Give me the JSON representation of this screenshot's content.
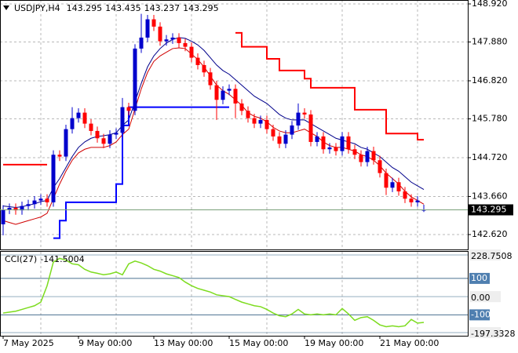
{
  "chart_data": {
    "type": "candlestick",
    "title": "USDJPY,H4",
    "categories": [
      "7 May 2025",
      null,
      null,
      null,
      null,
      null,
      null,
      null,
      null,
      null,
      null,
      null,
      "9 May 00:00",
      null,
      null,
      null,
      null,
      null,
      null,
      null,
      null,
      null,
      null,
      null,
      "13 May 00:00",
      null,
      null,
      null,
      null,
      null,
      null,
      null,
      null,
      null,
      null,
      null,
      "15 May 00:00",
      null,
      null,
      null,
      null,
      null,
      null,
      null,
      null,
      null,
      null,
      null,
      "19 May 00:00",
      null,
      null,
      null,
      null,
      null,
      null,
      null,
      null,
      null,
      null,
      null,
      "21 May 00:00",
      null,
      null,
      null,
      null,
      null,
      null,
      null
    ],
    "open": [
      142.9,
      143.3,
      143.35,
      143.28,
      143.4,
      143.45,
      143.55,
      143.6,
      143.5,
      144.8,
      144.75,
      145.5,
      145.8,
      145.95,
      145.65,
      145.45,
      145.25,
      145.1,
      145.35,
      145.4,
      146.1,
      146.0,
      147.7,
      148.0,
      148.5,
      148.3,
      147.9,
      147.95,
      148.0,
      147.85,
      147.75,
      147.45,
      147.25,
      147.05,
      146.7,
      146.3,
      146.55,
      146.6,
      146.2,
      146.0,
      145.8,
      145.65,
      145.75,
      145.5,
      145.3,
      145.1,
      145.35,
      145.6,
      145.95,
      145.9,
      145.15,
      145.3,
      144.95,
      145.0,
      144.9,
      145.3,
      144.95,
      144.8,
      144.6,
      144.9,
      144.65,
      144.3,
      143.9,
      144.05,
      143.8,
      143.6,
      143.5,
      143.295
    ],
    "high": [
      143.42,
      143.47,
      143.47,
      143.52,
      143.57,
      143.67,
      143.72,
      143.72,
      144.92,
      144.92,
      145.62,
      146.1,
      146.07,
      146.07,
      145.77,
      145.57,
      145.37,
      145.47,
      145.52,
      146.35,
      146.22,
      147.82,
      148.65,
      148.62,
      148.62,
      148.42,
      148.07,
      148.12,
      148.12,
      147.97,
      147.87,
      147.57,
      147.37,
      147.17,
      146.82,
      146.67,
      146.72,
      146.72,
      146.32,
      146.12,
      145.92,
      145.87,
      145.87,
      145.62,
      145.42,
      145.47,
      145.72,
      146.2,
      146.07,
      146.02,
      145.42,
      145.42,
      145.12,
      145.12,
      145.42,
      145.42,
      145.07,
      144.92,
      145.02,
      145.02,
      144.77,
      144.42,
      144.17,
      144.17,
      143.92,
      143.72,
      143.67,
      143.435
    ],
    "low": [
      142.6,
      143.18,
      143.16,
      143.16,
      143.28,
      143.33,
      143.43,
      143.38,
      143.38,
      144.63,
      144.63,
      145.38,
      145.68,
      145.53,
      145.33,
      145.13,
      144.98,
      144.98,
      145.23,
      145.28,
      145.88,
      145.88,
      147.58,
      147.88,
      148.18,
      147.78,
      147.78,
      147.83,
      147.73,
      147.63,
      147.33,
      147.13,
      146.93,
      146.58,
      145.75,
      146.18,
      146.43,
      145.8,
      145.88,
      145.68,
      145.53,
      145.53,
      145.38,
      145.18,
      144.98,
      144.98,
      145.23,
      145.48,
      145.78,
      145.03,
      145.03,
      144.83,
      144.83,
      144.78,
      144.78,
      144.83,
      144.68,
      144.48,
      144.48,
      144.53,
      144.18,
      143.7,
      143.78,
      143.68,
      143.48,
      143.38,
      143.38,
      143.237
    ],
    "close": [
      143.3,
      143.35,
      143.28,
      143.4,
      143.45,
      143.55,
      143.6,
      143.5,
      144.8,
      144.75,
      145.5,
      145.8,
      145.95,
      145.65,
      145.45,
      145.25,
      145.1,
      145.35,
      145.4,
      146.1,
      146.0,
      147.7,
      148.0,
      148.5,
      148.3,
      147.9,
      147.95,
      148.0,
      147.85,
      147.75,
      147.45,
      147.25,
      147.05,
      146.7,
      146.3,
      146.55,
      146.6,
      146.2,
      146.0,
      145.8,
      145.65,
      145.75,
      145.5,
      145.3,
      145.1,
      145.35,
      145.6,
      145.95,
      145.9,
      145.15,
      145.3,
      144.95,
      145.0,
      144.9,
      145.3,
      144.95,
      144.8,
      144.6,
      144.9,
      144.65,
      144.3,
      143.9,
      144.05,
      143.8,
      143.6,
      143.5,
      143.55,
      143.295
    ],
    "up_color": "#0000cc",
    "down_color": "#ff0000",
    "lines": [
      {
        "color": "#00008b",
        "width": 1,
        "values": [
          143.4,
          143.38,
          143.36,
          143.38,
          143.42,
          143.46,
          143.52,
          143.55,
          143.9,
          144.15,
          144.45,
          144.75,
          145.0,
          145.15,
          145.25,
          145.3,
          145.32,
          145.35,
          145.4,
          145.6,
          145.75,
          146.25,
          146.75,
          147.2,
          147.5,
          147.7,
          147.85,
          147.95,
          148.0,
          147.98,
          147.9,
          147.8,
          147.65,
          147.45,
          147.25,
          147.1,
          147.0,
          146.85,
          146.7,
          146.55,
          146.4,
          146.3,
          146.2,
          146.05,
          145.9,
          145.8,
          145.75,
          145.75,
          145.75,
          145.65,
          145.55,
          145.45,
          145.35,
          145.25,
          145.2,
          145.15,
          145.1,
          145.0,
          144.95,
          144.85,
          144.75,
          144.6,
          144.45,
          144.35,
          144.2,
          144.05,
          143.95,
          143.85
        ]
      },
      {
        "color": "#d00000",
        "width": 1,
        "values": [
          143.0,
          142.95,
          142.9,
          142.95,
          143.0,
          143.05,
          143.1,
          143.2,
          143.6,
          144.0,
          144.35,
          144.65,
          144.85,
          144.95,
          145.0,
          145.0,
          145.0,
          145.05,
          145.15,
          145.35,
          145.5,
          146.05,
          146.6,
          147.05,
          147.35,
          147.5,
          147.6,
          147.7,
          147.72,
          147.7,
          147.55,
          147.4,
          147.2,
          146.95,
          146.7,
          146.55,
          146.45,
          146.3,
          146.15,
          145.95,
          145.85,
          145.8,
          145.7,
          145.55,
          145.45,
          145.4,
          145.4,
          145.45,
          145.5,
          145.4,
          145.3,
          145.15,
          145.05,
          145.0,
          145.0,
          144.95,
          144.9,
          144.8,
          144.75,
          144.65,
          144.5,
          144.3,
          144.15,
          144.0,
          143.8,
          143.65,
          143.55,
          143.45
        ]
      },
      {
        "color": "#0000ff",
        "width": 2,
        "step": true,
        "values": [
          null,
          null,
          null,
          null,
          null,
          null,
          null,
          null,
          142.52,
          143.0,
          143.5,
          143.5,
          143.5,
          143.5,
          143.5,
          143.5,
          143.5,
          143.5,
          144.0,
          145.6,
          146.1,
          146.1,
          146.1,
          146.1,
          146.1,
          146.1,
          146.1,
          146.1,
          146.1,
          146.1,
          146.1,
          146.1,
          146.1,
          146.1,
          146.1,
          146.1,
          146.1,
          null,
          null,
          null,
          null,
          null,
          null,
          null,
          null,
          null,
          null,
          null,
          null,
          null,
          null,
          null,
          null,
          null,
          null,
          null,
          null,
          null,
          null,
          null,
          null,
          null,
          null,
          null,
          null,
          null,
          null,
          null
        ]
      },
      {
        "color": "#ff0000",
        "width": 2,
        "step": true,
        "values": [
          144.53,
          144.53,
          144.53,
          144.53,
          144.53,
          144.53,
          144.53,
          144.53,
          null,
          null,
          null,
          null,
          null,
          null,
          null,
          null,
          null,
          null,
          null,
          null,
          null,
          null,
          null,
          null,
          null,
          null,
          null,
          null,
          null,
          null,
          null,
          null,
          null,
          null,
          null,
          null,
          null,
          148.13,
          147.75,
          147.75,
          147.75,
          147.75,
          147.42,
          147.42,
          147.1,
          147.1,
          147.1,
          147.1,
          146.88,
          146.63,
          146.63,
          146.63,
          146.63,
          146.63,
          146.63,
          146.63,
          146.03,
          146.03,
          146.03,
          146.03,
          146.03,
          145.38,
          145.38,
          145.38,
          145.38,
          145.38,
          145.21,
          145.21
        ]
      }
    ],
    "ylim": [
      142.213,
      149.027
    ],
    "yticks": [
      {
        "value": 148.92,
        "label": "148.920"
      },
      {
        "value": 147.88,
        "label": "147.880"
      },
      {
        "value": 146.82,
        "label": "146.820"
      },
      {
        "value": 145.78,
        "label": "145.780"
      },
      {
        "value": 144.72,
        "label": "144.720"
      },
      {
        "value": 143.66,
        "label": "143.660"
      },
      {
        "value": 142.62,
        "label": "142.620"
      }
    ],
    "grid": true,
    "cci": {
      "title": "CCI(27)",
      "color": "#7ddc1f",
      "values": [
        -90,
        -85,
        -80,
        -70,
        -60,
        -50,
        -30,
        60,
        190,
        210,
        200,
        180,
        175,
        150,
        135,
        128,
        120,
        125,
        135,
        120,
        180,
        195,
        185,
        170,
        150,
        140,
        125,
        115,
        105,
        80,
        60,
        45,
        35,
        25,
        10,
        5,
        0,
        -15,
        -30,
        -40,
        -50,
        -55,
        -70,
        -90,
        -105,
        -110,
        -95,
        -70,
        -95,
        -100,
        -95,
        -100,
        -95,
        -100,
        -65,
        -95,
        -130,
        -115,
        -110,
        -130,
        -155,
        -165,
        -160,
        -165,
        -160,
        -125,
        -145,
        -141.5004
      ],
      "ylim": [
        -197.3328,
        228.7508
      ],
      "yticks": [
        228.7508,
        {
          "value": 0,
          "label": "0.00"
        },
        -197.3328
      ],
      "levels": [
        100,
        -100
      ]
    }
  }
}
